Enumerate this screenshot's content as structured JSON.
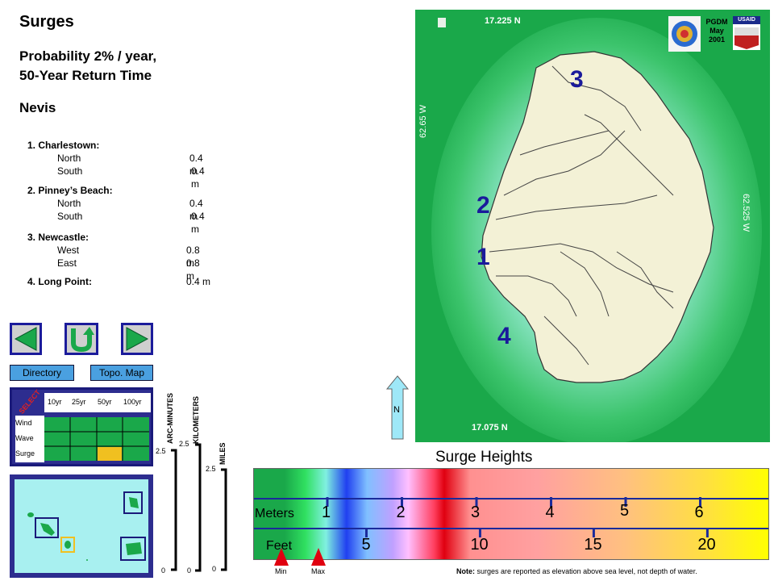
{
  "header": {
    "title": "Surges",
    "subtitle_line1": "Probability 2% / year,",
    "subtitle_line2": "50-Year Return Time",
    "island": "Nevis"
  },
  "locations": [
    {
      "name": "1. Charlestown:",
      "rows": [
        {
          "dir": "North",
          "val": "0.4 m"
        },
        {
          "dir": "South",
          "val": "0.4 m"
        }
      ]
    },
    {
      "name": "2. Pinney’s Beach:",
      "rows": [
        {
          "dir": "North",
          "val": "0.4 m"
        },
        {
          "dir": "South",
          "val": "0.4 m"
        }
      ]
    },
    {
      "name": "3. Newcastle:",
      "rows": [
        {
          "dir": "West",
          "val": "0.8 m"
        },
        {
          "dir": "East",
          "val": "0.8 m"
        }
      ]
    },
    {
      "name": "4. Long Point:",
      "val": "0.4 m"
    }
  ],
  "nav": {
    "directory": "Directory",
    "topo_map": "Topo. Map"
  },
  "selector": {
    "select_label": "SELECT",
    "columns": [
      "10yr",
      "25yr",
      "50yr",
      "100yr"
    ],
    "rows": [
      "Wind",
      "Wave",
      "Surge"
    ],
    "selected": {
      "row": "Surge",
      "col": "50yr"
    },
    "selected_color": "#f0c020"
  },
  "scales": {
    "arc_minutes": {
      "label": "ARC-MINUTES",
      "top": "2.5",
      "bottom": "0"
    },
    "kilometers": {
      "label": "KILOMETERS",
      "top": "2.5",
      "bottom": "0"
    },
    "miles": {
      "label": "MILES",
      "top": "2.5",
      "bottom": "0"
    }
  },
  "map": {
    "north_label": "17.225 N",
    "south_label": "17.075 N",
    "west_label": "62.65 W",
    "east_label": "62.525 W",
    "markers": [
      "1",
      "2",
      "3",
      "4"
    ],
    "north_arrow": "N",
    "logo_text_1": "PGDM",
    "logo_text_2": "May",
    "logo_text_3": "2001",
    "usaid": "USAID",
    "sea_color": "#1aa84a",
    "land_color": "#f3f1d6"
  },
  "legend": {
    "title": "Surge Heights",
    "meters_label": "Meters",
    "feet_label": "Feet",
    "meters": [
      "1",
      "2",
      "3",
      "4",
      "5",
      "6"
    ],
    "feet": [
      "5",
      "10",
      "15",
      "20"
    ],
    "min_label": "Min",
    "max_label": "Max",
    "note_bold": "Note:",
    "note": "surges are reported as elevation above sea level, not depth of water."
  }
}
